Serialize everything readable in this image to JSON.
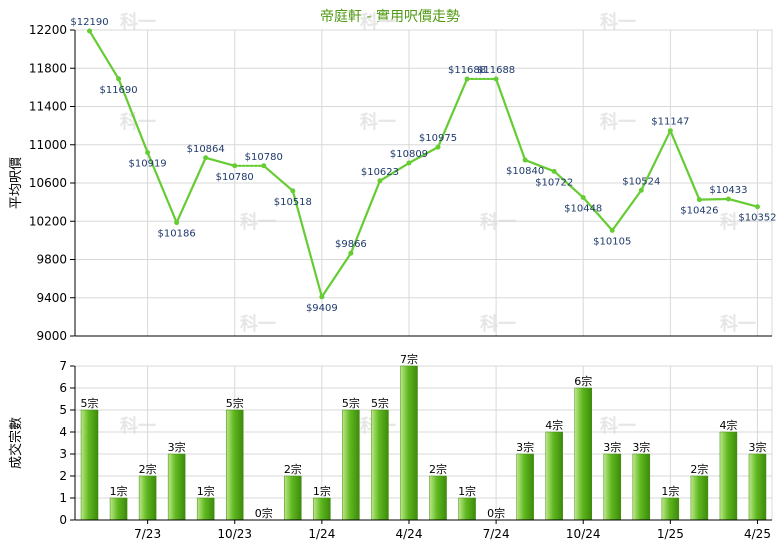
{
  "title": "帝庭軒 - 實用呎價走勢",
  "watermark": "科一",
  "colors": {
    "line": "#66cc33",
    "bar_light": "#bfe88a",
    "bar_mid": "#5fb81f",
    "bar_dark": "#3d8a0c",
    "grid": "#d8d8d8",
    "axis": "#000000",
    "label": "#1f3a6b",
    "watermark": "#e6e6e6",
    "title": "#4f9a12"
  },
  "chart_data": [
    {
      "type": "line",
      "ylabel": "平均呎價",
      "ylim": [
        9000,
        12200
      ],
      "yticks": [
        9000,
        9400,
        9800,
        10200,
        10600,
        11000,
        11400,
        11800,
        12200
      ],
      "grid": true,
      "x_tick_labels": [
        "7/23",
        "10/23",
        "1/24",
        "4/24",
        "7/24",
        "10/24",
        "1/25",
        "4/25"
      ],
      "values": [
        12190,
        11690,
        10919,
        10186,
        10864,
        10780,
        10780,
        10518,
        9409,
        9866,
        10623,
        10809,
        10975,
        11688,
        11688,
        10840,
        10722,
        10448,
        10105,
        10524,
        11147,
        10426,
        10433,
        10352
      ],
      "point_labels": [
        "$12190",
        "$11690",
        "$10919",
        "$10186",
        "$10864",
        "$10780",
        "$10780",
        "$10518",
        "$9409",
        "$9866",
        "$10623",
        "$10809",
        "$10975",
        "$11688",
        "$11688",
        "$10840",
        "$10722",
        "$10448",
        "$10105",
        "$10524",
        "$11147",
        "$10426",
        "$10433",
        "$10352"
      ],
      "dashed_segments": [
        5,
        13
      ]
    },
    {
      "type": "bar",
      "ylabel": "成交宗數",
      "ylim": [
        0,
        7
      ],
      "yticks": [
        0,
        1,
        2,
        3,
        4,
        5,
        6,
        7
      ],
      "grid": true,
      "x_tick_labels": [
        "7/23",
        "10/23",
        "1/24",
        "4/24",
        "7/24",
        "10/24",
        "1/25",
        "4/25"
      ],
      "values": [
        5,
        1,
        2,
        3,
        1,
        5,
        0,
        2,
        1,
        5,
        5,
        7,
        2,
        1,
        0,
        3,
        4,
        6,
        3,
        3,
        1,
        2,
        4,
        3
      ],
      "bar_labels": [
        "5宗",
        "1宗",
        "2宗",
        "3宗",
        "1宗",
        "5宗",
        "0宗",
        "2宗",
        "1宗",
        "5宗",
        "5宗",
        "7宗",
        "2宗",
        "1宗",
        "0宗",
        "3宗",
        "4宗",
        "6宗",
        "3宗",
        "3宗",
        "1宗",
        "2宗",
        "4宗",
        "3宗"
      ]
    }
  ]
}
